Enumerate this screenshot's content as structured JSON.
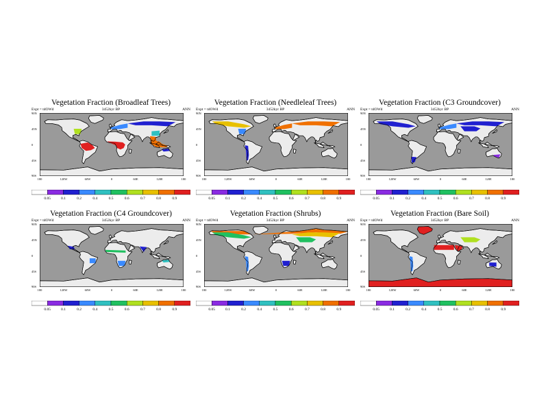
{
  "global": {
    "y_ticks": [
      "90N",
      "45N",
      "0",
      "45S",
      "90S"
    ],
    "x_ticks": [
      "180",
      "120W",
      "60W",
      "0",
      "60E",
      "120E",
      "180"
    ],
    "colorbar_levels": [
      "0.05",
      "0.1",
      "0.2",
      "0.4",
      "0.5",
      "0.6",
      "0.7",
      "0.8",
      "0.9"
    ],
    "colorbar_colors": [
      "#ffffff",
      "#8a2be2",
      "#2020d0",
      "#3a8aff",
      "#30c0c0",
      "#20c060",
      "#b0e020",
      "#e8c000",
      "#f07000",
      "#e02020"
    ],
    "land_base_color": "#ececec",
    "ocean_color": "#9a9a9a"
  },
  "panels": [
    {
      "title": "Vegetation Fraction (Broadleaf Trees)",
      "expt": "Expt = tdOWd",
      "time": "3452kyr BP",
      "season": "ANN",
      "highlights": [
        {
          "region": "Amazon",
          "level": 9
        },
        {
          "region": "CentralAfrica",
          "level": 9
        },
        {
          "region": "SEAsia",
          "level": 8
        },
        {
          "region": "EastUS",
          "level": 6
        },
        {
          "region": "Europe",
          "level": 3
        },
        {
          "region": "Siberia",
          "level": 2
        },
        {
          "region": "China",
          "level": 4
        },
        {
          "region": "NAustralia",
          "level": 2
        }
      ]
    },
    {
      "title": "Vegetation Fraction (Needleleaf Trees)",
      "expt": "Expt = tdOWd",
      "time": "3452kyr BP",
      "season": "ANN",
      "highlights": [
        {
          "region": "Canada",
          "level": 7
        },
        {
          "region": "Siberia",
          "level": 8
        },
        {
          "region": "Europe",
          "level": 8
        },
        {
          "region": "EastUS",
          "level": 3
        },
        {
          "region": "Andes",
          "level": 2
        }
      ]
    },
    {
      "title": "Vegetation Fraction (C3 Groundcover)",
      "expt": "Expt = tdOWd",
      "time": "3452kyr BP",
      "season": "ANN",
      "highlights": [
        {
          "region": "Canada",
          "level": 2
        },
        {
          "region": "Siberia",
          "level": 2
        },
        {
          "region": "Europe",
          "level": 3
        },
        {
          "region": "CentralAsia",
          "level": 2
        },
        {
          "region": "Patagonia",
          "level": 2
        },
        {
          "region": "SAustralia",
          "level": 1
        }
      ]
    },
    {
      "title": "Vegetation Fraction (C4 Groundcover)",
      "expt": "Expt = tdOWd",
      "time": "3452kyr BP",
      "season": "ANN",
      "highlights": [
        {
          "region": "Sahel",
          "level": 5
        },
        {
          "region": "SouthAfrica",
          "level": 3
        },
        {
          "region": "Brazil",
          "level": 3
        },
        {
          "region": "NAustralia",
          "level": 4
        },
        {
          "region": "India",
          "level": 2
        },
        {
          "region": "Mexico",
          "level": 2
        }
      ]
    },
    {
      "title": "Vegetation Fraction (Shrubs)",
      "expt": "Expt = tdOWd",
      "time": "3452kyr BP",
      "season": "ANN",
      "highlights": [
        {
          "region": "Arctic",
          "level": 8
        },
        {
          "region": "Canada",
          "level": 5
        },
        {
          "region": "Siberia",
          "level": 7
        },
        {
          "region": "CentralAsia",
          "level": 5
        },
        {
          "region": "Andes",
          "level": 3
        },
        {
          "region": "SouthAfrica",
          "level": 2
        }
      ]
    },
    {
      "title": "Vegetation Fraction (Bare Soil)",
      "expt": "Expt = tdOWd",
      "time": "3452kyr BP",
      "season": "ANN",
      "highlights": [
        {
          "region": "Sahara",
          "level": 9
        },
        {
          "region": "Arabia",
          "level": 9
        },
        {
          "region": "Greenland",
          "level": 9
        },
        {
          "region": "Antarctica",
          "level": 9
        },
        {
          "region": "CentralAsia",
          "level": 6
        },
        {
          "region": "Andes",
          "level": 3
        },
        {
          "region": "CAustralia",
          "level": 2
        }
      ]
    }
  ]
}
